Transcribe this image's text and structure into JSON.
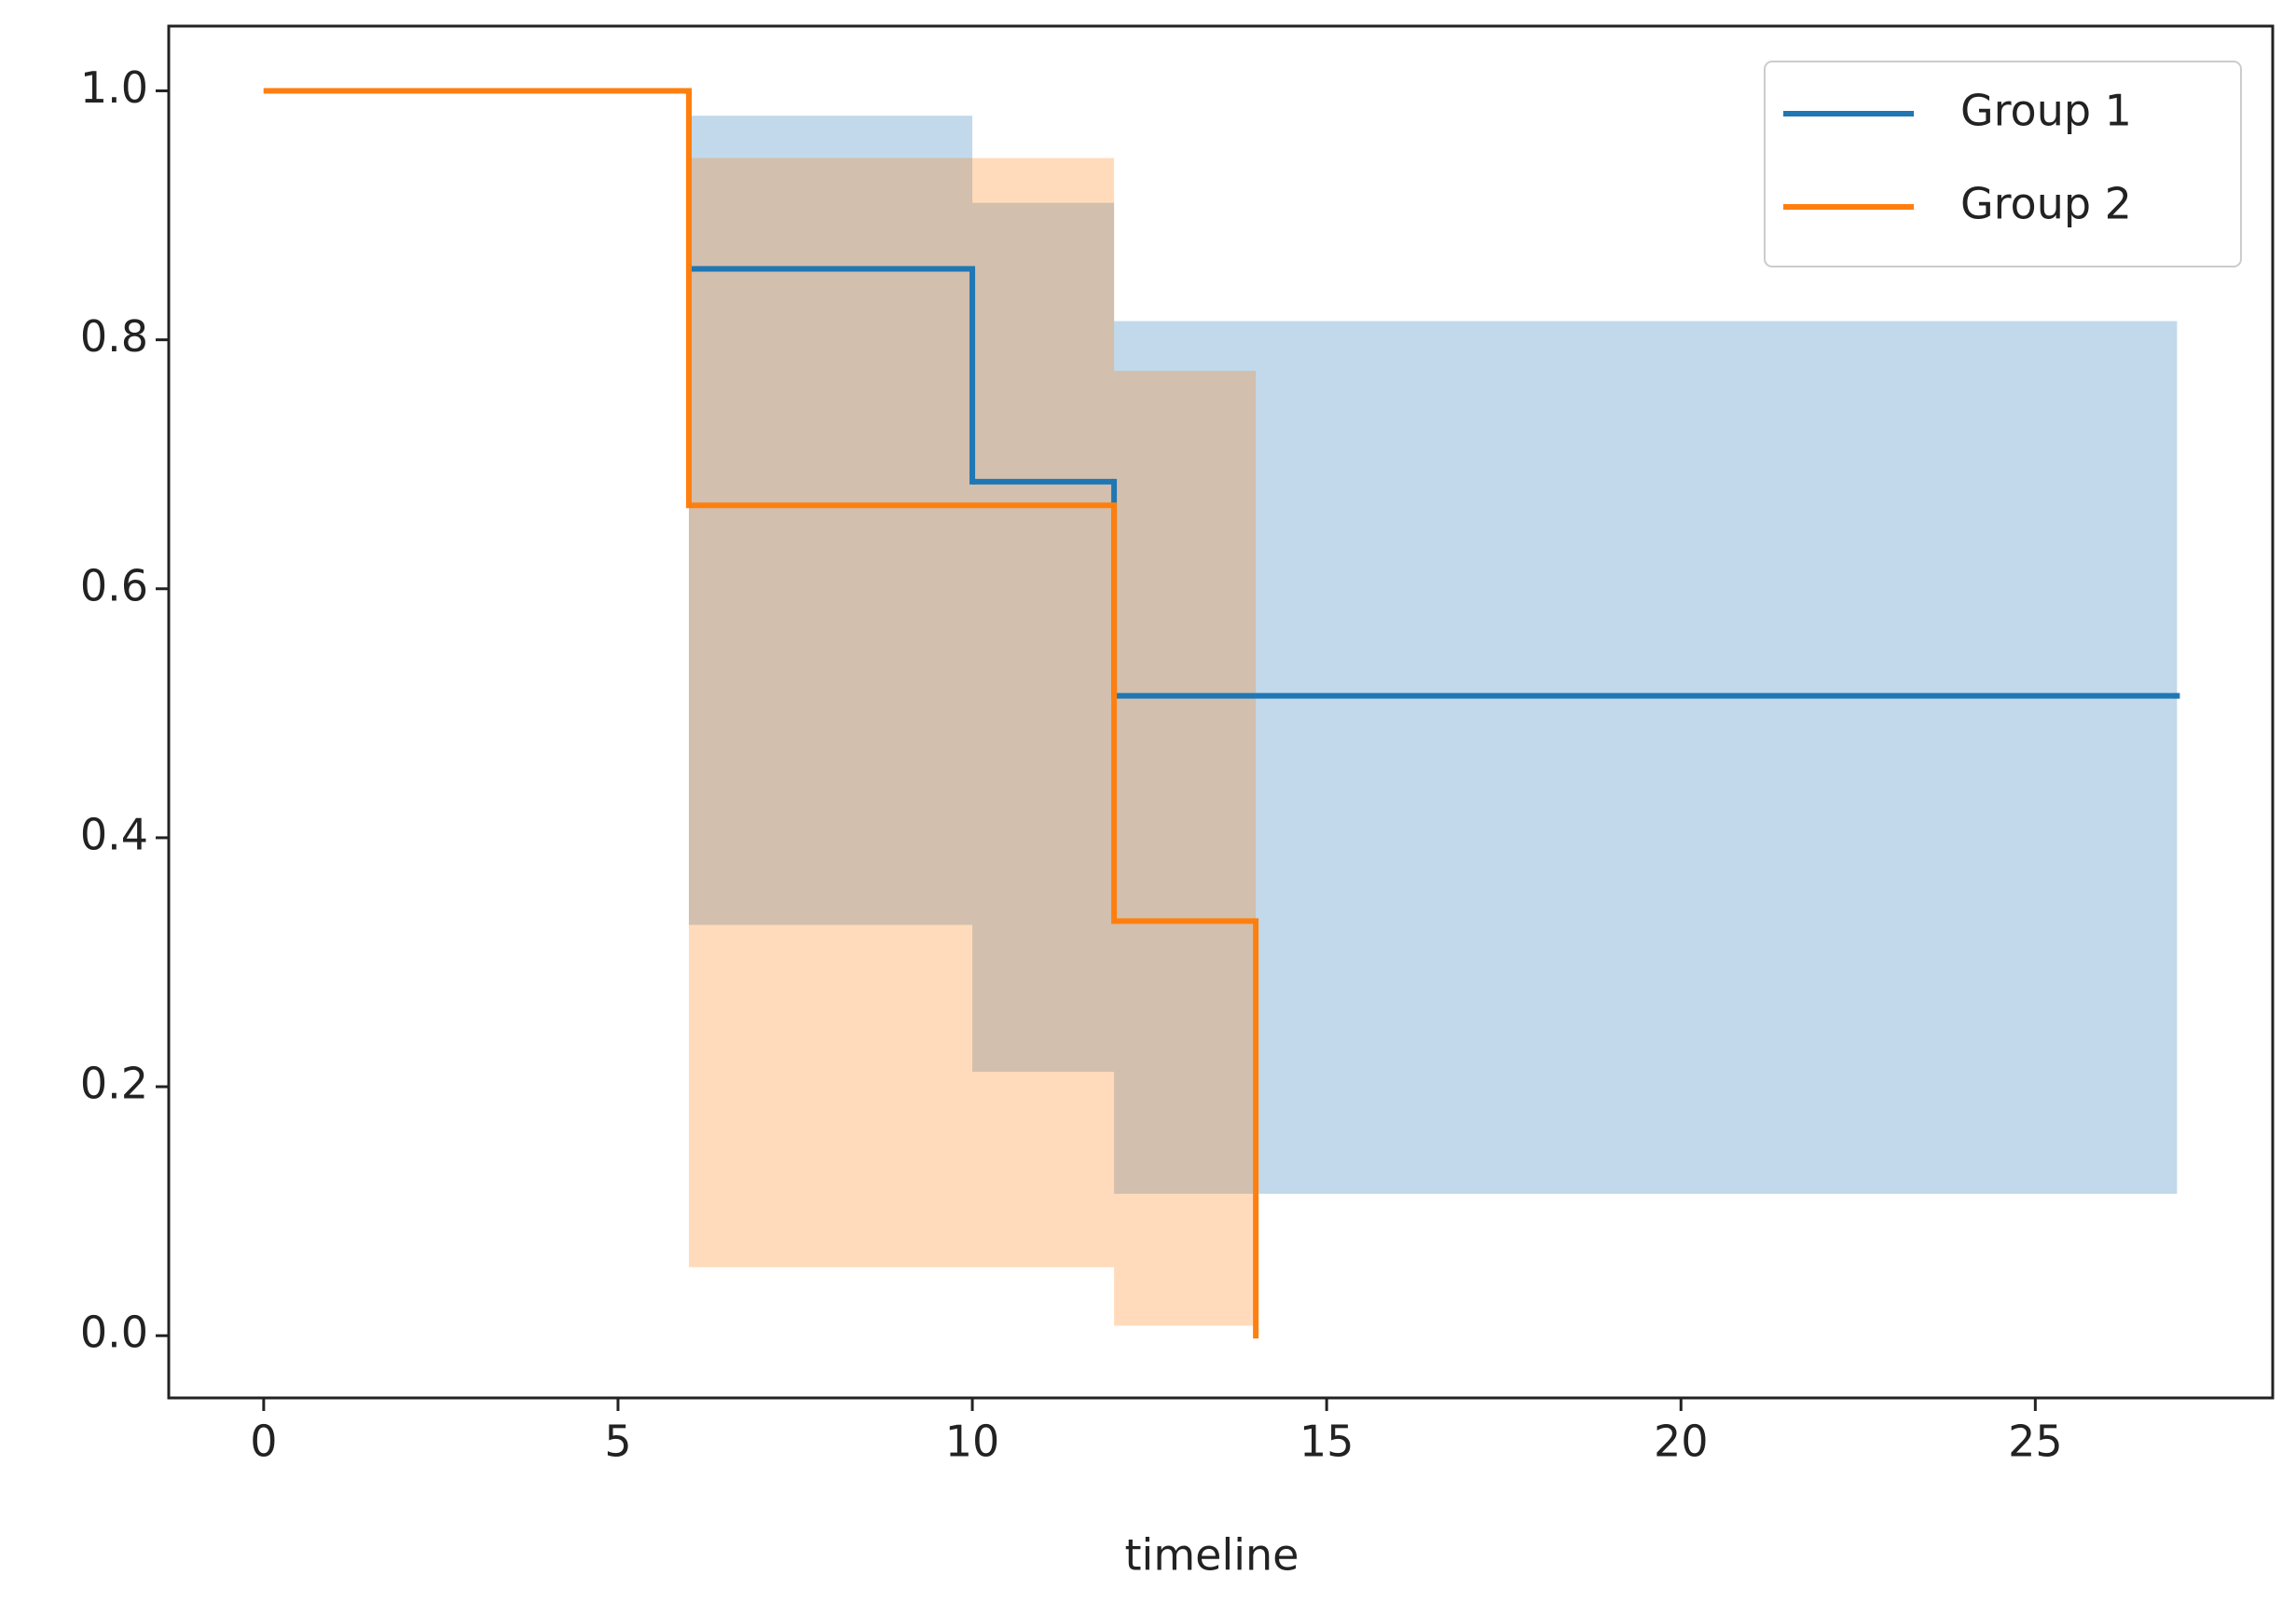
{
  "chart_data": {
    "type": "step",
    "xlabel": "timeline",
    "xlim": [
      -1.34,
      28.35
    ],
    "xticks": [
      0,
      5,
      10,
      15,
      20,
      25
    ],
    "ylim": [
      -0.05,
      1.052
    ],
    "yticks": [
      {
        "value": 0,
        "label": "0.0"
      },
      {
        "value": 0.2,
        "label": "0.2"
      },
      {
        "value": 0.4,
        "label": "0.4"
      },
      {
        "value": 0.6,
        "label": "0.6"
      },
      {
        "value": 0.8,
        "label": "0.8"
      },
      {
        "value": 1,
        "label": "1.0"
      }
    ],
    "legend": "upper right",
    "series": [
      {
        "name": "Group 1",
        "color": "#1f77b4",
        "x": [
          0,
          6,
          10,
          12,
          27
        ],
        "values": [
          1,
          0.857,
          0.686,
          0.514,
          0.514
        ],
        "ci_lower": [
          1,
          0.33,
          0.212,
          0.114,
          null
        ],
        "ci_upper": [
          1,
          0.98,
          0.91,
          0.815,
          null
        ]
      },
      {
        "name": "Group 2",
        "color": "#ff7f0e",
        "x": [
          0,
          6,
          12,
          14
        ],
        "values": [
          1,
          0.667,
          0.333,
          0
        ],
        "ci_lower": [
          1,
          0.055,
          0.008,
          null
        ],
        "ci_upper": [
          1,
          0.946,
          0.775,
          null
        ]
      }
    ]
  }
}
